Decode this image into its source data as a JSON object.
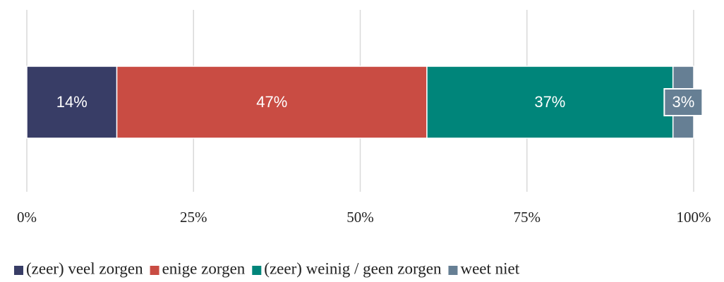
{
  "chart_data": {
    "type": "stacked-barh",
    "series": [
      {
        "name": "(zeer) veel zorgen",
        "color": "#383d66",
        "values": [
          13.5
        ],
        "value_labels": [
          "14%"
        ]
      },
      {
        "name": "enige zorgen",
        "color": "#c94c43",
        "values": [
          46.5
        ],
        "value_labels": [
          "47%"
        ]
      },
      {
        "name": "(zeer) weinig / geen zorgen",
        "color": "#00857a",
        "values": [
          36.9
        ],
        "value_labels": [
          "37%"
        ]
      },
      {
        "name": "weet niet",
        "color": "#667f94",
        "values": [
          3.1
        ],
        "value_labels": [
          "3%"
        ]
      }
    ],
    "xlim": [
      0,
      100
    ],
    "xticks": [
      {
        "value": 0,
        "label": "0%"
      },
      {
        "value": 25,
        "label": "25%"
      },
      {
        "value": 50,
        "label": "50%"
      },
      {
        "value": 75,
        "label": "75%"
      },
      {
        "value": 100,
        "label": "100%"
      }
    ],
    "grid": true,
    "legend": "bottom"
  }
}
